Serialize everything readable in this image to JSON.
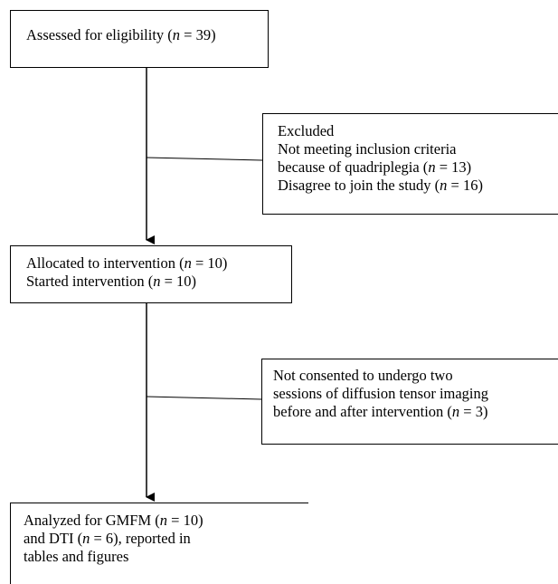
{
  "boxes": {
    "assessed": {
      "lines": [
        {
          "pre": "Assessed for eligibility (",
          "n": "n",
          "post": " = 39)"
        }
      ]
    },
    "excluded": {
      "lines": [
        {
          "pre": "Excluded",
          "n": "",
          "post": ""
        },
        {
          "pre": "Not meeting inclusion criteria",
          "n": "",
          "post": ""
        },
        {
          "pre": "because of quadriplegia (",
          "n": "n",
          "post": " = 13)"
        },
        {
          "pre": "Disagree to join the study (",
          "n": "n",
          "post": " = 16)"
        }
      ]
    },
    "allocated": {
      "lines": [
        {
          "pre": "Allocated to intervention (",
          "n": "n",
          "post": " = 10)"
        },
        {
          "pre": "Started intervention (",
          "n": "n",
          "post": " = 10)"
        }
      ]
    },
    "not_consented": {
      "lines": [
        {
          "pre": "Not consented to undergo two",
          "n": "",
          "post": ""
        },
        {
          "pre": "sessions of diffusion tensor imaging",
          "n": "",
          "post": ""
        },
        {
          "pre": "before and after intervention (",
          "n": "n",
          "post": " = 3)"
        }
      ]
    },
    "analyzed": {
      "lines": [
        {
          "pre": "Analyzed for GMFM (",
          "n": "n",
          "post": " = 10)"
        },
        {
          "pre": "and DTI (",
          "n": "n",
          "post": " = 6), reported in"
        },
        {
          "pre": "tables and figures",
          "n": "",
          "post": ""
        }
      ]
    }
  }
}
